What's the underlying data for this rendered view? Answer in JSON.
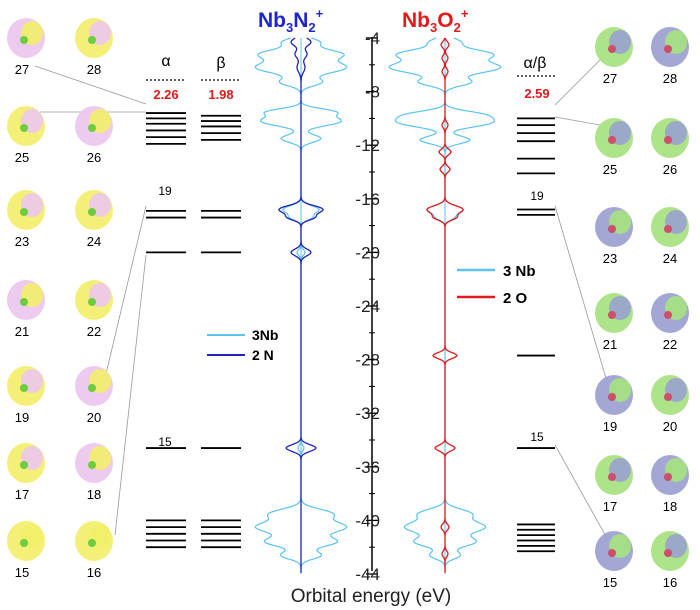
{
  "title_left": {
    "base": "Nb",
    "sub1": "3",
    "mid": "N",
    "sub2": "2",
    "sup": "+"
  },
  "title_right": {
    "base": "Nb",
    "sub1": "3",
    "mid": "O",
    "sub2": "2",
    "sup": "+"
  },
  "axis": {
    "label": "Orbital energy (eV)",
    "ticks": [
      "-4",
      "-8",
      "-12",
      "-16",
      "-20",
      "-24",
      "-28",
      "-32",
      "-36",
      "-40",
      "-44"
    ],
    "min": -44,
    "max": -4
  },
  "left_levels": {
    "alpha_header": "α",
    "beta_header": "β",
    "alpha_gap": "2.26",
    "beta_gap": "1.98",
    "alpha_mark_19": "19",
    "alpha_mark_15": "15",
    "alpha": [
      -40.0,
      -40.5,
      -41.0,
      -41.5,
      -42.0,
      -34.6,
      -20.0,
      -16.9,
      -17.4,
      -9.6,
      -10.0,
      -10.4,
      -10.9,
      -11.4,
      -11.9
    ],
    "beta": [
      -40.0,
      -40.5,
      -41.0,
      -41.5,
      -42.0,
      -34.6,
      -20.0,
      -16.9,
      -17.4,
      -9.8,
      -10.2,
      -10.6,
      -11.1,
      -11.6
    ]
  },
  "right_levels": {
    "header": "α/β",
    "gap": "2.59",
    "mark_19": "19",
    "mark_15": "15",
    "levels": [
      -40.3,
      -40.7,
      -41.1,
      -41.5,
      -41.9,
      -42.3,
      -34.6,
      -27.7,
      -16.8,
      -17.2,
      -10.0,
      -10.5,
      -11.1,
      -11.7,
      -13.0,
      -14.1
    ]
  },
  "legend_left": [
    {
      "label": "3Nb",
      "color": "#5bc3ef"
    },
    {
      "label": "2 N",
      "color": "#1f25b5"
    }
  ],
  "legend_right": [
    {
      "label": "3 Nb",
      "color": "#5bc3ef"
    },
    {
      "label": "2 O",
      "color": "#e3191c"
    }
  ],
  "left_orbitals": [
    {
      "label": "27",
      "lobes": [
        "#ecc6ee",
        "#f3ee6a"
      ]
    },
    {
      "label": "28",
      "lobes": [
        "#f3ee6a",
        "#ecc6ee"
      ]
    },
    {
      "label": "25",
      "lobes": [
        "#f3ee6a",
        "#ecc6ee"
      ]
    },
    {
      "label": "26",
      "lobes": [
        "#ecc6ee",
        "#f3ee6a"
      ]
    },
    {
      "label": "23",
      "lobes": [
        "#f3ee6a",
        "#ecc6ee"
      ]
    },
    {
      "label": "24",
      "lobes": [
        "#f3ee6a",
        "#ecc6ee"
      ]
    },
    {
      "label": "21",
      "lobes": [
        "#ecc6ee",
        "#f3ee6a"
      ]
    },
    {
      "label": "22",
      "lobes": [
        "#f3ee6a",
        "#ecc6ee"
      ]
    },
    {
      "label": "19",
      "lobes": [
        "#f3ee6a",
        "#ecc6ee"
      ]
    },
    {
      "label": "20",
      "lobes": [
        "#ecc6ee",
        "#f3ee6a"
      ]
    },
    {
      "label": "17",
      "lobes": [
        "#f3ee6a",
        "#ecc6ee"
      ]
    },
    {
      "label": "18",
      "lobes": [
        "#ecc6ee",
        "#f3ee6a"
      ]
    },
    {
      "label": "15",
      "lobes": [
        "#f3ee6a",
        "#f3ee6a"
      ]
    },
    {
      "label": "16",
      "lobes": [
        "#f3ee6a",
        "#f3ee6a"
      ]
    }
  ],
  "right_orbitals": [
    {
      "label": "27",
      "lobes": [
        "#a6e27f",
        "#9aa1cf"
      ]
    },
    {
      "label": "28",
      "lobes": [
        "#9aa1cf",
        "#a6e27f"
      ]
    },
    {
      "label": "25",
      "lobes": [
        "#a6e27f",
        "#9aa1cf"
      ]
    },
    {
      "label": "26",
      "lobes": [
        "#a6e27f",
        "#9aa1cf"
      ]
    },
    {
      "label": "23",
      "lobes": [
        "#9aa1cf",
        "#a6e27f"
      ]
    },
    {
      "label": "24",
      "lobes": [
        "#a6e27f",
        "#9aa1cf"
      ]
    },
    {
      "label": "21",
      "lobes": [
        "#a6e27f",
        "#9aa1cf"
      ]
    },
    {
      "label": "22",
      "lobes": [
        "#9aa1cf",
        "#a6e27f"
      ]
    },
    {
      "label": "19",
      "lobes": [
        "#9aa1cf",
        "#a6e27f"
      ]
    },
    {
      "label": "20",
      "lobes": [
        "#a6e27f",
        "#9aa1cf"
      ]
    },
    {
      "label": "17",
      "lobes": [
        "#a6e27f",
        "#9aa1cf"
      ]
    },
    {
      "label": "18",
      "lobes": [
        "#9aa1cf",
        "#a6e27f"
      ]
    },
    {
      "label": "15",
      "lobes": [
        "#9aa1cf",
        "#a6e27f"
      ]
    },
    {
      "label": "16",
      "lobes": [
        "#a6e27f",
        "#9aa1cf"
      ]
    }
  ],
  "colors": {
    "nb_line": "#5bc3ef",
    "n_line": "#1f25b5",
    "o_line": "#e3191c",
    "title_left": "#1f25cf",
    "title_right": "#e3191c",
    "gap_text": "#e3191c"
  }
}
